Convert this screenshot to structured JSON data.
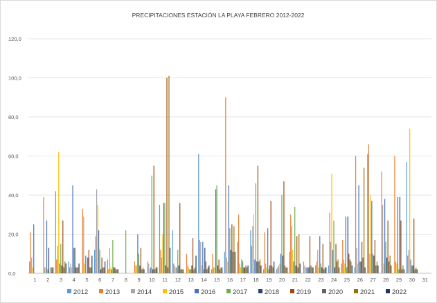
{
  "chart_data": {
    "type": "bar",
    "title": "PRECIPITACIONES ESTACIÓN LA PLAYA  FEBRERO  2012-2022",
    "xlabel": "",
    "ylabel": "",
    "ylim": [
      0,
      120
    ],
    "yticks": [
      "0,0",
      "20,0",
      "40,0",
      "60,0",
      "80,0",
      "100,0",
      "120,0"
    ],
    "categories": [
      "1",
      "2",
      "3",
      "4",
      "5",
      "6",
      "7",
      "8",
      "9",
      "10",
      "11",
      "12",
      "13",
      "14",
      "15",
      "16",
      "17",
      "18",
      "19",
      "20",
      "21",
      "22",
      "23",
      "24",
      "25",
      "26",
      "27",
      "28",
      "29",
      "30",
      "31"
    ],
    "grid": true,
    "legend_position": "bottom",
    "series": [
      {
        "name": "2012",
        "color": "#5B9BD5",
        "values": [
          6,
          0,
          42,
          6,
          0,
          12,
          7,
          0,
          0,
          0,
          35,
          22,
          0,
          61,
          2,
          11,
          16,
          22,
          2,
          2,
          11,
          0,
          4,
          4,
          5,
          3,
          61,
          0,
          0,
          57,
          0
        ]
      },
      {
        "name": "2013",
        "color": "#ED7D31",
        "values": [
          21,
          39,
          7,
          3,
          33,
          19,
          2,
          0,
          6,
          6,
          12,
          5,
          10,
          17,
          10,
          90,
          30,
          14,
          21,
          3,
          30,
          6,
          6,
          31,
          17,
          60,
          66,
          52,
          60,
          9,
          0
        ]
      },
      {
        "name": "2014",
        "color": "#A5A5A5",
        "values": [
          8,
          3,
          14,
          5,
          29,
          43,
          13,
          0,
          4,
          5,
          8,
          4,
          4,
          16,
          3,
          8,
          5,
          24,
          5,
          4,
          24,
          4,
          12,
          16,
          7,
          13,
          10,
          35,
          6,
          12,
          0
        ]
      },
      {
        "name": "2015",
        "color": "#FFC000",
        "values": [
          3,
          3,
          62,
          3,
          5,
          35,
          3,
          0,
          4,
          2,
          20,
          3,
          3,
          4,
          3,
          6,
          3,
          30,
          3,
          5,
          12,
          3,
          3,
          51,
          5,
          5,
          40,
          5,
          5,
          74,
          0
        ]
      },
      {
        "name": "2016",
        "color": "#4472C4",
        "values": [
          25,
          27,
          5,
          45,
          9,
          22,
          2,
          0,
          20,
          3,
          36,
          3,
          2,
          16,
          43,
          45,
          7,
          7,
          23,
          10,
          6,
          3,
          19,
          12,
          29,
          45,
          37,
          38,
          39,
          7,
          0
        ]
      },
      {
        "name": "2017",
        "color": "#70AD47",
        "values": [
          0,
          2,
          15,
          13,
          0,
          12,
          17,
          22,
          10,
          50,
          36,
          12,
          2,
          2,
          45,
          23,
          6,
          46,
          2,
          40,
          34,
          3,
          5,
          27,
          3,
          6,
          10,
          16,
          2,
          4,
          0
        ]
      },
      {
        "name": "2018",
        "color": "#264478",
        "values": [
          0,
          13,
          4,
          13,
          8,
          2,
          3,
          0,
          4,
          2,
          4,
          4,
          4,
          13,
          4,
          12,
          3,
          6,
          4,
          9,
          4,
          3,
          3,
          3,
          29,
          6,
          9,
          8,
          39,
          4,
          0
        ]
      },
      {
        "name": "2019",
        "color": "#9E480E",
        "values": [
          0,
          0,
          27,
          3,
          12,
          8,
          3,
          0,
          13,
          55,
          100,
          36,
          18,
          6,
          7,
          25,
          3,
          55,
          37,
          47,
          19,
          19,
          15,
          15,
          10,
          16,
          17,
          27,
          27,
          28,
          0
        ]
      },
      {
        "name": "2020",
        "color": "#636363",
        "values": [
          0,
          3,
          3,
          3,
          3,
          3,
          2,
          0,
          2,
          2,
          3,
          2,
          2,
          2,
          2,
          11,
          4,
          6,
          4,
          4,
          3,
          4,
          2,
          6,
          7,
          8,
          4,
          6,
          2,
          2,
          0
        ]
      },
      {
        "name": "2021",
        "color": "#997300",
        "values": [
          0,
          3,
          6,
          3,
          3,
          3,
          2,
          0,
          3,
          3,
          101,
          2,
          3,
          3,
          3,
          24,
          3,
          7,
          3,
          3,
          20,
          3,
          3,
          7,
          6,
          54,
          6,
          9,
          4,
          3,
          0
        ]
      },
      {
        "name": "2022",
        "color": "#203864",
        "values": [
          0,
          3,
          5,
          5,
          9,
          6,
          2,
          0,
          2,
          3,
          13,
          2,
          9,
          4,
          3,
          11,
          4,
          4,
          6,
          3,
          5,
          3,
          3,
          3,
          4,
          3,
          4,
          4,
          2,
          2,
          0
        ]
      }
    ]
  }
}
